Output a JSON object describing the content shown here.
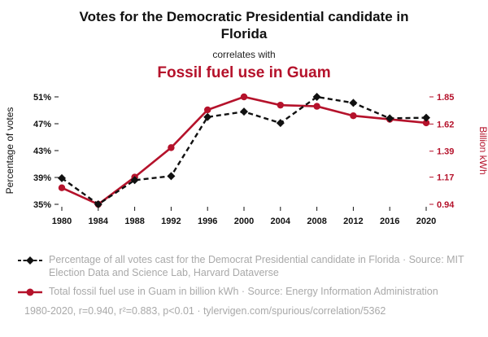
{
  "header": {
    "title": "Votes for the Democratic Presidential candidate in Florida",
    "connector": "correlates with",
    "subtitle": "Fossil fuel use in Guam"
  },
  "colors": {
    "accent_red": "#b5122b",
    "line_black": "#111111",
    "muted_text": "#a9a9a9"
  },
  "chart_data": {
    "type": "line",
    "x": [
      1980,
      1984,
      1988,
      1992,
      1996,
      2000,
      2004,
      2008,
      2012,
      2016,
      2020
    ],
    "x_ticks": [
      "1980",
      "1984",
      "1988",
      "1992",
      "1996",
      "2000",
      "2004",
      "2008",
      "2012",
      "2016",
      "2020"
    ],
    "series": [
      {
        "name": "Total fossil fuel use in Guam",
        "axis": "right",
        "color": "#b5122b",
        "style": "solid-circle",
        "values": [
          1.08,
          0.94,
          1.17,
          1.42,
          1.74,
          1.85,
          1.78,
          1.77,
          1.69,
          1.66,
          1.63
        ]
      },
      {
        "name": "Percentage of votes for the Democrat Presidential candidate in Florida",
        "axis": "left",
        "color": "#111111",
        "style": "dashed-diamond",
        "values": [
          38.9,
          35.0,
          38.6,
          39.2,
          48.0,
          48.8,
          47.1,
          51.0,
          50.1,
          47.8,
          47.9
        ]
      }
    ],
    "left_axis": {
      "label": "Percentage of votes",
      "ticks": [
        "35%",
        "39%",
        "43%",
        "47%",
        "51%"
      ],
      "tick_values": [
        35,
        39,
        43,
        47,
        51
      ],
      "range": [
        35,
        51
      ]
    },
    "right_axis": {
      "label": "Billion kWh",
      "ticks": [
        "0.94",
        "1.17",
        "1.39",
        "1.62",
        "1.85"
      ],
      "tick_values": [
        0.94,
        1.17,
        1.39,
        1.62,
        1.85
      ],
      "range": [
        0.94,
        1.85
      ]
    },
    "grid": false,
    "legend_position": "bottom"
  },
  "legend": [
    {
      "marker": "black-dashed-diamond",
      "text": "Percentage of all votes cast for the Democrat Presidential candidate in Florida · Source: MIT Election Data and Science Lab, Harvard Dataverse"
    },
    {
      "marker": "red-solid-circle",
      "text": "Total fossil fuel use in Guam in billion kWh · Source: Energy Information Administration"
    }
  ],
  "footer": {
    "text": "1980-2020, r=0.940, r²=0.883, p<0.01 · tylervigen.com/spurious/correlation/5362"
  }
}
